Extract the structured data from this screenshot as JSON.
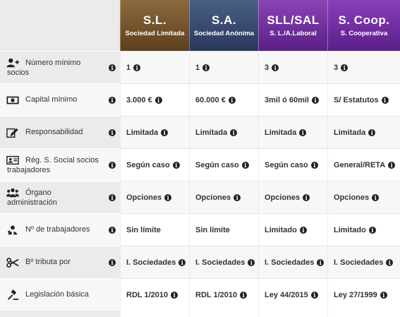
{
  "columns": [
    {
      "abbr": "S.L.",
      "full": "Sociedad Limitada"
    },
    {
      "abbr": "S.A.",
      "full": "Sociedad Anónima"
    },
    {
      "abbr": "SLL/SAL",
      "full": "S. L./A.Laboral"
    },
    {
      "abbr": "S. Coop.",
      "full": "S. Cooperativa"
    }
  ],
  "rows": [
    {
      "label_line1": "Número mínimo",
      "label_line2": "socios",
      "icon": "user-plus-icon",
      "values": [
        "1",
        "1",
        "3",
        "3"
      ]
    },
    {
      "label_line1": "Capital mínimo",
      "label_line2": "",
      "icon": "money-bill-icon",
      "values": [
        "3.000 €",
        "60.000 €",
        "3mil ó 60mil",
        "S/ Estatutos"
      ]
    },
    {
      "label_line1": "Responsabilidad",
      "label_line2": "",
      "icon": "edit-pencil-icon",
      "values": [
        "Limitada",
        "Limitada",
        "Limitada",
        "Limitada"
      ]
    },
    {
      "label_line1": "Rég. S. Social socios",
      "label_line2": "trabajadores",
      "icon": "id-card-icon",
      "values": [
        "Según caso",
        "Según caso",
        "Según caso",
        "General/RETA"
      ]
    },
    {
      "label_line1": "Órgano",
      "label_line2": "administración",
      "icon": "users-group-icon",
      "values": [
        "Opciones",
        "Opciones",
        "Opciones",
        "Opciones"
      ]
    },
    {
      "label_line1": "Nº de trabajadores",
      "label_line2": "",
      "icon": "worker-icon",
      "values": [
        "Sin límite",
        "Sin límite",
        "Limitado",
        "Limitado"
      ]
    },
    {
      "label_line1": "Bº tributa por",
      "label_line2": "",
      "icon": "scissors-icon",
      "values": [
        "I. Sociedades",
        "I. Sociedades",
        "I. Sociedades",
        "I. Sociedades"
      ]
    },
    {
      "label_line1": "Legislación básica",
      "label_line2": "",
      "icon": "gavel-icon",
      "values": [
        "RDL 1/2010",
        "RDL 1/2010",
        "Ley 44/2015",
        "Ley 27/1999"
      ]
    }
  ],
  "info_glyph": "i",
  "colors": {
    "sl": "#6f5028",
    "sa": "#34466b",
    "sll": "#6f2e9e",
    "coop": "#6f2e9e"
  }
}
